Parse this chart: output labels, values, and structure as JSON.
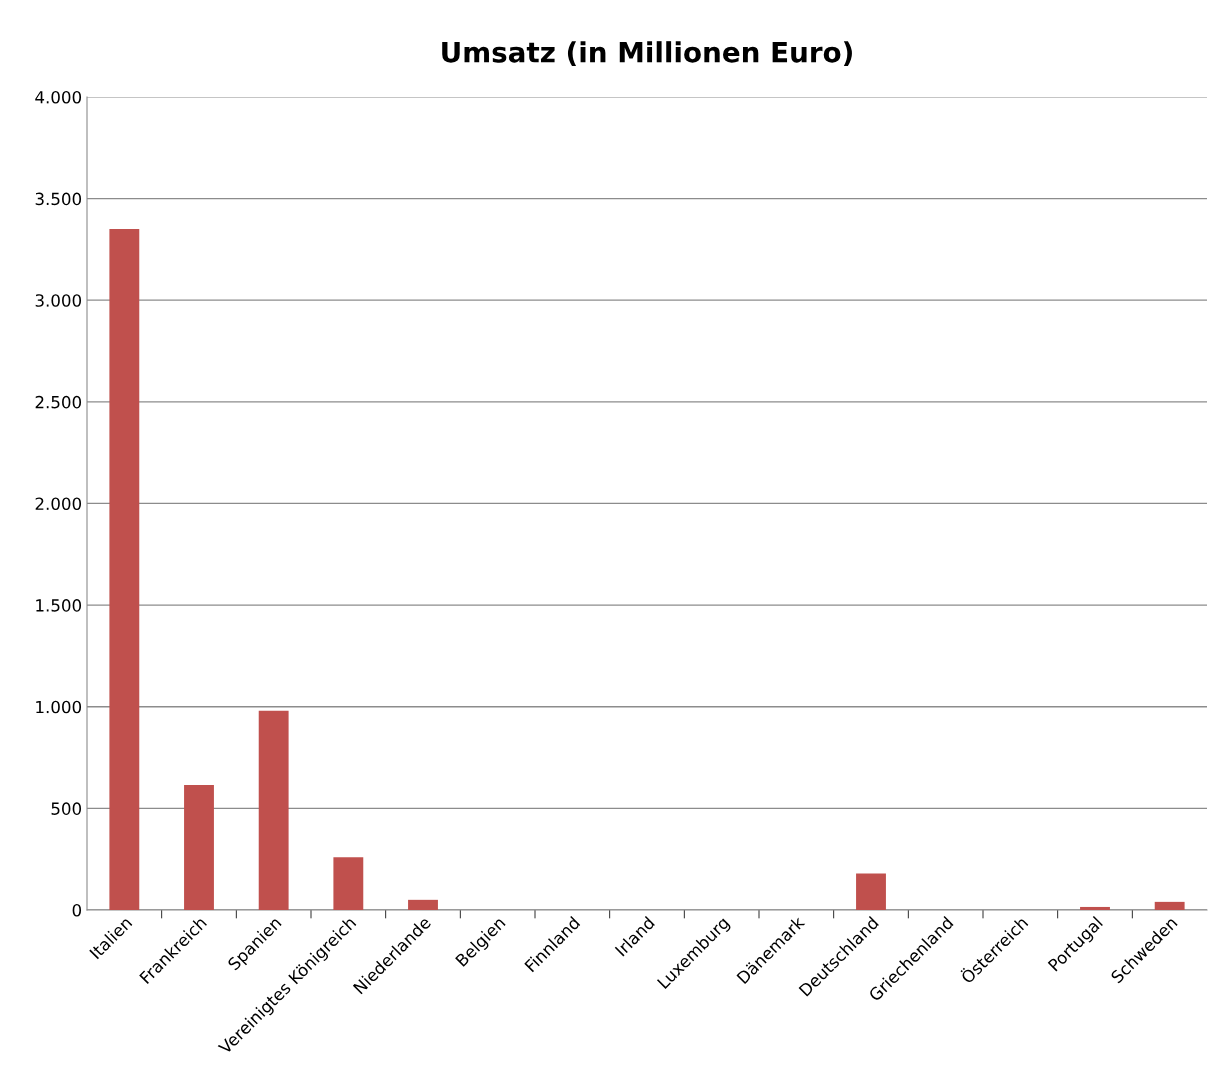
{
  "chart_data": {
    "type": "bar",
    "title": "Umsatz (in Millionen Euro)",
    "categories": [
      "Italien",
      "Frankreich",
      "Spanien",
      "Vereinigtes Königreich",
      "Niederlande",
      "Belgien",
      "Finnland",
      "Irland",
      "Luxemburg",
      "Dänemark",
      "Deutschland",
      "Griechenland",
      "Österreich",
      "Portugal",
      "Schweden"
    ],
    "values": [
      3350,
      615,
      980,
      260,
      50,
      0,
      0,
      0,
      0,
      0,
      180,
      0,
      0,
      15,
      40
    ],
    "color": "#c0504d",
    "ylim": [
      0,
      4000
    ],
    "yticks": [
      0,
      500,
      {
        "value": 1000,
        "label": "1.000"
      },
      {
        "value": 1500,
        "label": "1.500"
      },
      {
        "value": 2000,
        "label": "2.000"
      },
      {
        "value": 2500,
        "label": "2.500"
      },
      {
        "value": 3000,
        "label": "3.000"
      },
      {
        "value": 3500,
        "label": "3.500"
      },
      {
        "value": 4000,
        "label": "4.000"
      }
    ],
    "grid": "y",
    "legend": false
  }
}
